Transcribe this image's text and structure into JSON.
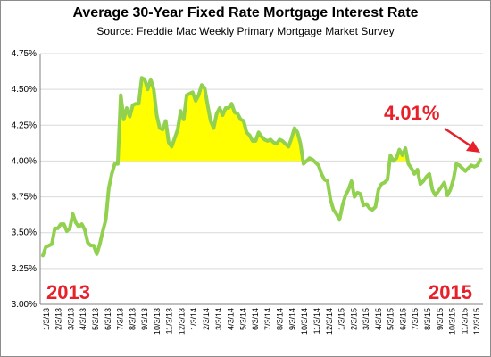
{
  "chart_data": {
    "type": "line",
    "title": "Average 30-Year Fixed Rate Mortgage Interest Rate",
    "subtitle": "Source: Freddie Mac Weekly Primary Mortgage Market Survey",
    "ylim": [
      3.0,
      4.75
    ],
    "yticks": [
      "3.00%",
      "3.25%",
      "3.50%",
      "3.75%",
      "4.00%",
      "4.25%",
      "4.50%",
      "4.75%"
    ],
    "ytick_values": [
      3.0,
      3.25,
      3.5,
      3.75,
      4.0,
      4.25,
      4.5,
      4.75
    ],
    "xticks": [
      "1/3/13",
      "2/3/13",
      "3/3/13",
      "4/3/13",
      "5/3/13",
      "6/3/13",
      "7/3/13",
      "8/3/13",
      "9/3/13",
      "10/3/13",
      "11/3/13",
      "12/3/13",
      "1/3/14",
      "2/3/14",
      "3/3/14",
      "4/3/14",
      "5/3/14",
      "6/3/14",
      "7/3/14",
      "8/3/14",
      "9/3/14",
      "10/3/14",
      "11/3/14",
      "12/3/14",
      "1/3/15",
      "2/3/15",
      "3/3/15",
      "4/3/15",
      "5/3/15",
      "6/3/15",
      "7/3/15",
      "8/3/15",
      "9/3/15",
      "10/3/15",
      "11/3/15",
      "12/3/15"
    ],
    "grid": true,
    "baseline": 4.0,
    "fill_color": "#ffff00",
    "line_color": "#92d050",
    "series": [
      {
        "values": [
          3.34,
          3.4,
          3.41,
          3.42,
          3.53,
          3.53,
          3.56,
          3.56,
          3.51,
          3.53,
          3.63,
          3.57,
          3.54,
          3.56,
          3.52,
          3.43,
          3.41,
          3.41,
          3.35,
          3.42,
          3.51,
          3.59,
          3.81,
          3.91,
          3.98,
          3.98,
          4.46,
          4.29,
          4.37,
          4.31,
          4.39,
          4.4,
          4.4,
          4.58,
          4.57,
          4.5,
          4.57,
          4.5,
          4.32,
          4.23,
          4.22,
          4.28,
          4.13,
          4.1,
          4.16,
          4.22,
          4.35,
          4.29,
          4.46,
          4.47,
          4.48,
          4.42,
          4.46,
          4.53,
          4.51,
          4.39,
          4.28,
          4.23,
          4.33,
          4.37,
          4.32,
          4.37,
          4.37,
          4.4,
          4.34,
          4.33,
          4.29,
          4.28,
          4.2,
          4.18,
          4.14,
          4.14,
          4.2,
          4.17,
          4.15,
          4.14,
          4.15,
          4.13,
          4.12,
          4.15,
          4.14,
          4.12,
          4.1,
          4.16,
          4.23,
          4.2,
          4.12,
          3.98,
          4.0,
          4.02,
          4.01,
          3.99,
          3.97,
          3.91,
          3.87,
          3.86,
          3.73,
          3.66,
          3.63,
          3.59,
          3.69,
          3.76,
          3.8,
          3.86,
          3.75,
          3.78,
          3.77,
          3.69,
          3.7,
          3.67,
          3.66,
          3.68,
          3.8,
          3.84,
          3.85,
          3.87,
          4.04,
          4.0,
          4.02,
          4.08,
          4.04,
          4.09,
          3.98,
          3.95,
          3.91,
          3.94,
          3.84,
          3.86,
          3.89,
          3.91,
          3.8,
          3.76,
          3.79,
          3.82,
          3.85,
          3.76,
          3.8,
          3.87,
          3.98,
          3.97,
          3.95,
          3.93,
          3.95,
          3.97,
          3.96,
          3.97,
          4.01
        ]
      }
    ],
    "annotations": {
      "current_rate": "4.01%",
      "start_year": "2013",
      "end_year": "2015"
    },
    "annotation_color": "#e8202a"
  }
}
